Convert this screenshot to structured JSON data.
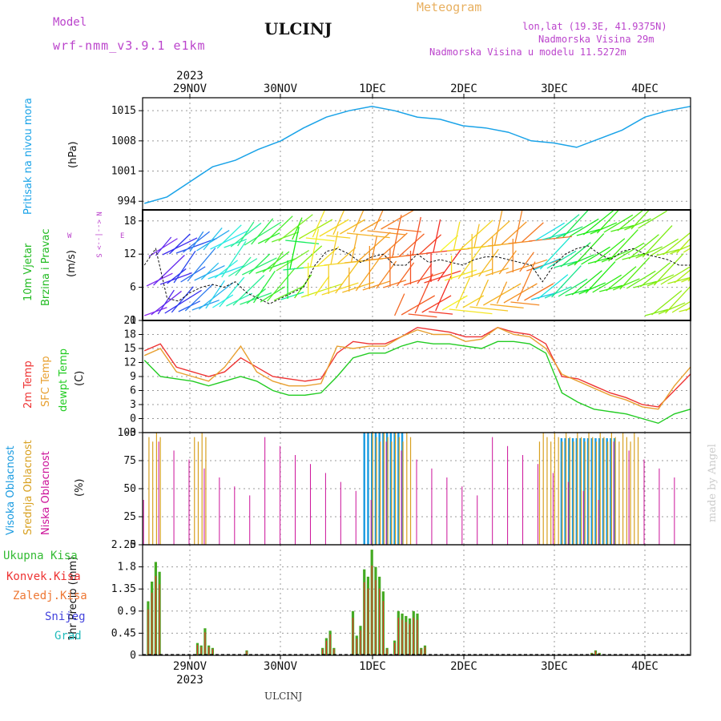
{
  "header": {
    "model_label": "Model",
    "model_name": "wrf-nmm_v3.9.1 e1km",
    "station_title": "ULCINJ",
    "meteogram_label": "Meteogram",
    "coords": "lon,lat (19.3E, 41.9375N)",
    "elevation": "Nadmorska Visina 29m",
    "model_elevation": "Nadmorska Visina u modelu 11.5272m",
    "footer_station": "ULCINJ",
    "watermark": "made by Angel"
  },
  "colors": {
    "pressure": "#1aa3e8",
    "temp_2m": "#ee3333",
    "temp_sfc": "#e8a030",
    "dewpoint": "#22cc22",
    "high_cloud": "#1a9be0",
    "mid_cloud": "#d8a020",
    "low_cloud": "#cc1199",
    "precip_total": "#44aa22",
    "precip_conv": "#ee3333",
    "label_purple": "#bb44cc"
  },
  "chart_data": [
    {
      "panel": "pressure",
      "type": "line",
      "ylabel_main": "Pritisak na nivou mora",
      "ylabel_unit": "(hPa)",
      "yticks": [
        "994",
        "1001",
        "1008",
        "1015"
      ],
      "ylim": [
        992,
        1018
      ],
      "x_day_offset_hours": [
        0,
        6,
        12,
        18,
        24,
        30,
        36,
        42,
        48,
        54,
        60,
        66,
        72,
        78,
        84,
        90,
        96,
        102,
        108,
        114,
        120,
        126,
        132,
        138,
        144
      ],
      "values": [
        993.5,
        995,
        998.5,
        1002,
        1003.5,
        1006,
        1008,
        1011,
        1013.5,
        1015,
        1016,
        1015,
        1013.5,
        1013,
        1011.5,
        1011,
        1010,
        1008,
        1007.5,
        1006.5,
        1008.5,
        1010.5,
        1013.5,
        1015,
        1016
      ]
    },
    {
      "panel": "wind",
      "type": "line",
      "ylabel_main": "10m Vjetar",
      "ylabel_main2": "Brzina i Pravac",
      "ylabel_unit": "(m/s)",
      "compass": [
        "N",
        "<--|-->",
        "W",
        "E",
        "S"
      ],
      "yticks": [
        "0",
        "6",
        "12",
        "18"
      ],
      "ylim": [
        0,
        20
      ],
      "values": [
        10,
        13,
        4,
        3.5,
        5,
        6,
        6.5,
        6,
        7,
        5,
        4,
        3,
        4,
        5,
        6,
        10,
        12.5,
        13,
        12,
        10.5,
        11.5,
        12,
        10,
        10,
        12,
        10.5,
        11,
        10.5,
        10,
        11,
        11.5,
        11.5,
        11,
        10.5,
        10,
        7,
        10,
        12,
        13,
        13.5,
        12,
        11,
        12.5,
        13,
        12,
        11.5,
        11,
        10,
        10
      ]
    },
    {
      "panel": "temperature",
      "type": "line",
      "ylabel_series": [
        "2m Temp",
        "SFC Temp",
        "dewpt Temp"
      ],
      "ylabel_unit": "(C)",
      "yticks": [
        "-3",
        "0",
        "3",
        "6",
        "9",
        "12",
        "15",
        "18",
        "21"
      ],
      "ylim": [
        -3,
        21
      ],
      "series": [
        {
          "name": "2m Temp",
          "values": [
            14.5,
            16,
            11,
            10,
            9,
            10,
            13,
            11,
            9,
            8.5,
            8,
            8.5,
            14,
            16.5,
            16,
            16,
            17.5,
            19.5,
            19,
            18.5,
            17.5,
            17.5,
            19.5,
            18.5,
            18,
            16,
            9,
            8.5,
            7,
            5.5,
            4.5,
            3,
            2.5,
            6,
            9.5
          ]
        },
        {
          "name": "SFC Temp",
          "values": [
            13.5,
            15,
            10,
            9,
            8,
            11,
            15.5,
            10,
            8,
            7,
            7,
            7.5,
            15.5,
            15,
            15.5,
            15.5,
            17.5,
            19,
            18,
            18,
            16.5,
            17,
            19.5,
            18,
            17.5,
            15,
            9.5,
            8,
            6.5,
            5,
            4,
            2.5,
            2,
            7,
            11
          ]
        },
        {
          "name": "dewpt Temp",
          "values": [
            12.5,
            9,
            8.5,
            8,
            7,
            8,
            9,
            8,
            6,
            5,
            5,
            5.5,
            9,
            13,
            14,
            14,
            15.5,
            16.5,
            16,
            16,
            15.5,
            15,
            16.5,
            16.5,
            16,
            14,
            5.5,
            3.5,
            2,
            1.5,
            1,
            0,
            -1,
            1,
            2
          ]
        }
      ]
    },
    {
      "panel": "clouds",
      "type": "bar",
      "ylabel_series": [
        "Visoka Oblacnost",
        "Srednja Oblacnost",
        "Niska Oblacnost"
      ],
      "ylabel_unit": "(%)",
      "yticks": [
        "0",
        "25",
        "50",
        "75",
        "100"
      ],
      "ylim": [
        0,
        100
      ]
    },
    {
      "panel": "precip",
      "type": "bar",
      "ylabel_unit": "1hr Precip (mm)",
      "legend": [
        "Ukupna Kisa",
        "Konvek.Kisa",
        "Zaledj.Kisa",
        "Snijeg",
        "Grad"
      ],
      "yticks": [
        "0",
        "0.45",
        "0.9",
        "1.35",
        "1.8",
        "2.25"
      ],
      "ylim": [
        0,
        2.25
      ],
      "xticks": [
        "29NOV",
        "30NOV",
        "1DEC",
        "2DEC",
        "3DEC",
        "4DEC"
      ],
      "year": "2023",
      "values": [
        {
          "x": 1,
          "v": 1.1
        },
        {
          "x": 2,
          "v": 1.5
        },
        {
          "x": 3,
          "v": 1.9
        },
        {
          "x": 4,
          "v": 1.7
        },
        {
          "x": 14,
          "v": 0.25
        },
        {
          "x": 15,
          "v": 0.2
        },
        {
          "x": 16,
          "v": 0.55
        },
        {
          "x": 17,
          "v": 0.2
        },
        {
          "x": 18,
          "v": 0.15
        },
        {
          "x": 27,
          "v": 0.1
        },
        {
          "x": 47,
          "v": 0.15
        },
        {
          "x": 48,
          "v": 0.35
        },
        {
          "x": 49,
          "v": 0.5
        },
        {
          "x": 50,
          "v": 0.15
        },
        {
          "x": 55,
          "v": 0.9
        },
        {
          "x": 56,
          "v": 0.4
        },
        {
          "x": 57,
          "v": 0.6
        },
        {
          "x": 58,
          "v": 1.75
        },
        {
          "x": 59,
          "v": 1.6
        },
        {
          "x": 60,
          "v": 2.15
        },
        {
          "x": 61,
          "v": 1.8
        },
        {
          "x": 62,
          "v": 1.6
        },
        {
          "x": 63,
          "v": 1.3
        },
        {
          "x": 64,
          "v": 0.15
        },
        {
          "x": 66,
          "v": 0.3
        },
        {
          "x": 67,
          "v": 0.9
        },
        {
          "x": 68,
          "v": 0.85
        },
        {
          "x": 69,
          "v": 0.8
        },
        {
          "x": 70,
          "v": 0.75
        },
        {
          "x": 71,
          "v": 0.9
        },
        {
          "x": 72,
          "v": 0.85
        },
        {
          "x": 73,
          "v": 0.15
        },
        {
          "x": 74,
          "v": 0.2
        },
        {
          "x": 118,
          "v": 0.05
        },
        {
          "x": 119,
          "v": 0.1
        },
        {
          "x": 120,
          "v": 0.05
        }
      ]
    }
  ]
}
